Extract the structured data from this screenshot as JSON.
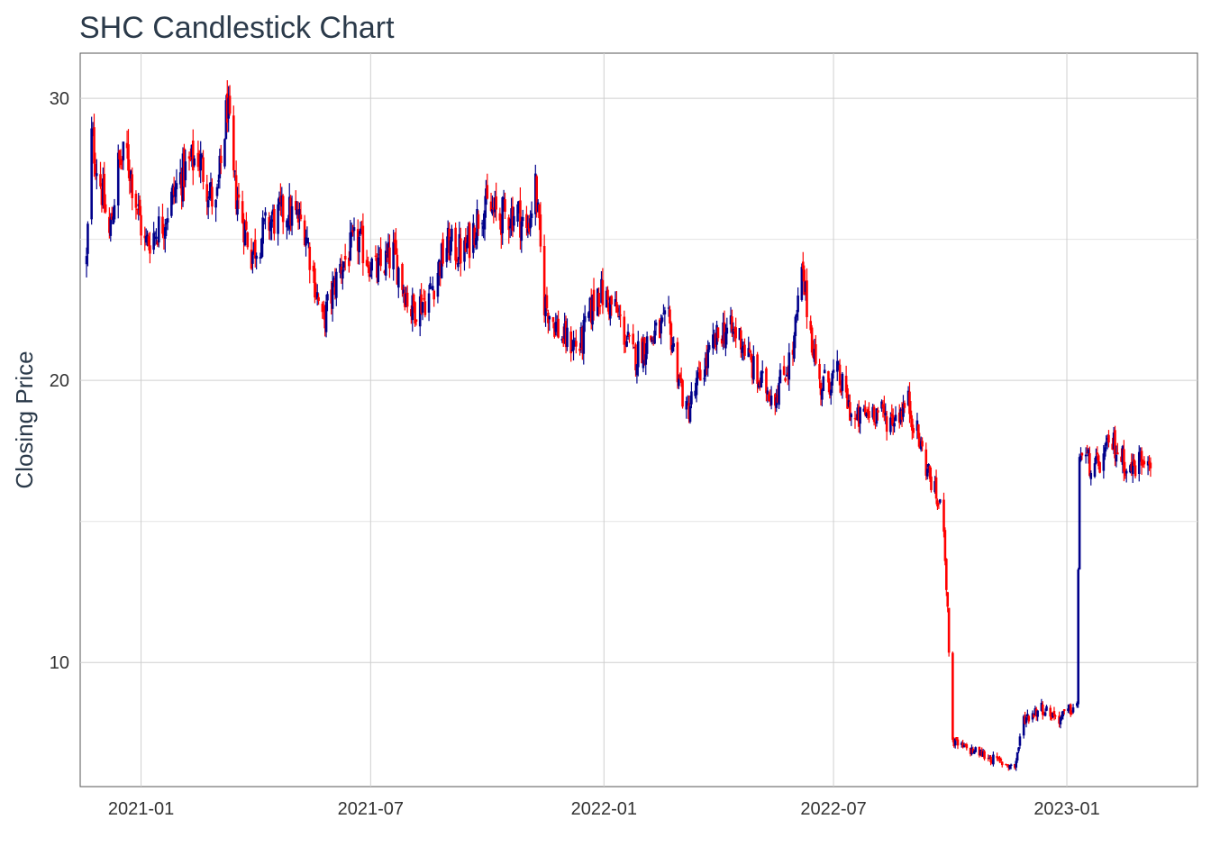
{
  "chart_data": {
    "type": "candlestick",
    "title": "SHC Candlestick Chart",
    "xlabel": "",
    "ylabel": "Closing Price",
    "x_ticks": [
      "2021-01",
      "2021-07",
      "2022-01",
      "2022-07",
      "2023-01"
    ],
    "y_ticks": [
      10,
      20,
      30
    ],
    "xlim": [
      "2020-11-14",
      "2023-04-14"
    ],
    "ylim": [
      5.6,
      31.6
    ],
    "grid": true,
    "colors": {
      "up": "#00008b",
      "down": "#ff0000"
    },
    "series_anchors": [
      [
        "2020-11-19",
        24.2
      ],
      [
        "2020-11-23",
        28.6
      ],
      [
        "2020-11-30",
        27.0
      ],
      [
        "2020-12-07",
        25.1
      ],
      [
        "2020-12-14",
        27.6
      ],
      [
        "2020-12-21",
        28.0
      ],
      [
        "2021-01-04",
        24.8
      ],
      [
        "2021-01-18",
        25.6
      ],
      [
        "2021-02-01",
        27.2
      ],
      [
        "2021-02-15",
        28.0
      ],
      [
        "2021-03-01",
        26.0
      ],
      [
        "2021-03-08",
        28.9
      ],
      [
        "2021-03-10",
        29.8
      ],
      [
        "2021-03-15",
        27.0
      ],
      [
        "2021-03-29",
        24.5
      ],
      [
        "2021-04-12",
        25.6
      ],
      [
        "2021-04-26",
        26.0
      ],
      [
        "2021-05-10",
        25.5
      ],
      [
        "2021-05-24",
        22.0
      ],
      [
        "2021-06-07",
        24.0
      ],
      [
        "2021-06-21",
        25.0
      ],
      [
        "2021-07-05",
        23.8
      ],
      [
        "2021-07-19",
        24.5
      ],
      [
        "2021-08-02",
        22.5
      ],
      [
        "2021-08-16",
        23.0
      ],
      [
        "2021-08-30",
        24.8
      ],
      [
        "2021-09-13",
        24.5
      ],
      [
        "2021-09-27",
        26.2
      ],
      [
        "2021-10-11",
        25.8
      ],
      [
        "2021-10-25",
        26.0
      ],
      [
        "2021-11-01",
        25.2
      ],
      [
        "2021-11-08",
        26.9
      ],
      [
        "2021-11-15",
        22.8
      ],
      [
        "2021-11-29",
        21.5
      ],
      [
        "2021-12-13",
        21.2
      ],
      [
        "2021-12-27",
        23.2
      ],
      [
        "2022-01-10",
        22.5
      ],
      [
        "2022-01-24",
        20.8
      ],
      [
        "2022-02-07",
        21.5
      ],
      [
        "2022-02-21",
        22.0
      ],
      [
        "2022-03-07",
        18.8
      ],
      [
        "2022-03-21",
        20.5
      ],
      [
        "2022-04-04",
        21.8
      ],
      [
        "2022-04-18",
        21.6
      ],
      [
        "2022-05-02",
        20.0
      ],
      [
        "2022-05-16",
        19.5
      ],
      [
        "2022-05-30",
        21.0
      ],
      [
        "2022-06-06",
        23.8
      ],
      [
        "2022-06-20",
        19.8
      ],
      [
        "2022-07-04",
        20.2
      ],
      [
        "2022-07-18",
        18.5
      ],
      [
        "2022-08-01",
        19.0
      ],
      [
        "2022-08-15",
        18.6
      ],
      [
        "2022-08-29",
        19.2
      ],
      [
        "2022-09-12",
        17.0
      ],
      [
        "2022-09-26",
        15.0
      ],
      [
        "2022-10-03",
        7.2
      ],
      [
        "2022-10-10",
        7.0
      ],
      [
        "2022-10-24",
        6.8
      ],
      [
        "2022-11-07",
        6.5
      ],
      [
        "2022-11-21",
        6.3
      ],
      [
        "2022-11-28",
        8.0
      ],
      [
        "2022-12-12",
        8.4
      ],
      [
        "2022-12-26",
        8.0
      ],
      [
        "2023-01-09",
        8.5
      ],
      [
        "2023-01-11",
        17.5
      ],
      [
        "2023-01-23",
        16.8
      ],
      [
        "2023-02-06",
        17.8
      ],
      [
        "2023-02-20",
        16.8
      ],
      [
        "2023-03-06",
        17.5
      ],
      [
        "2023-03-09",
        17.2
      ]
    ]
  }
}
